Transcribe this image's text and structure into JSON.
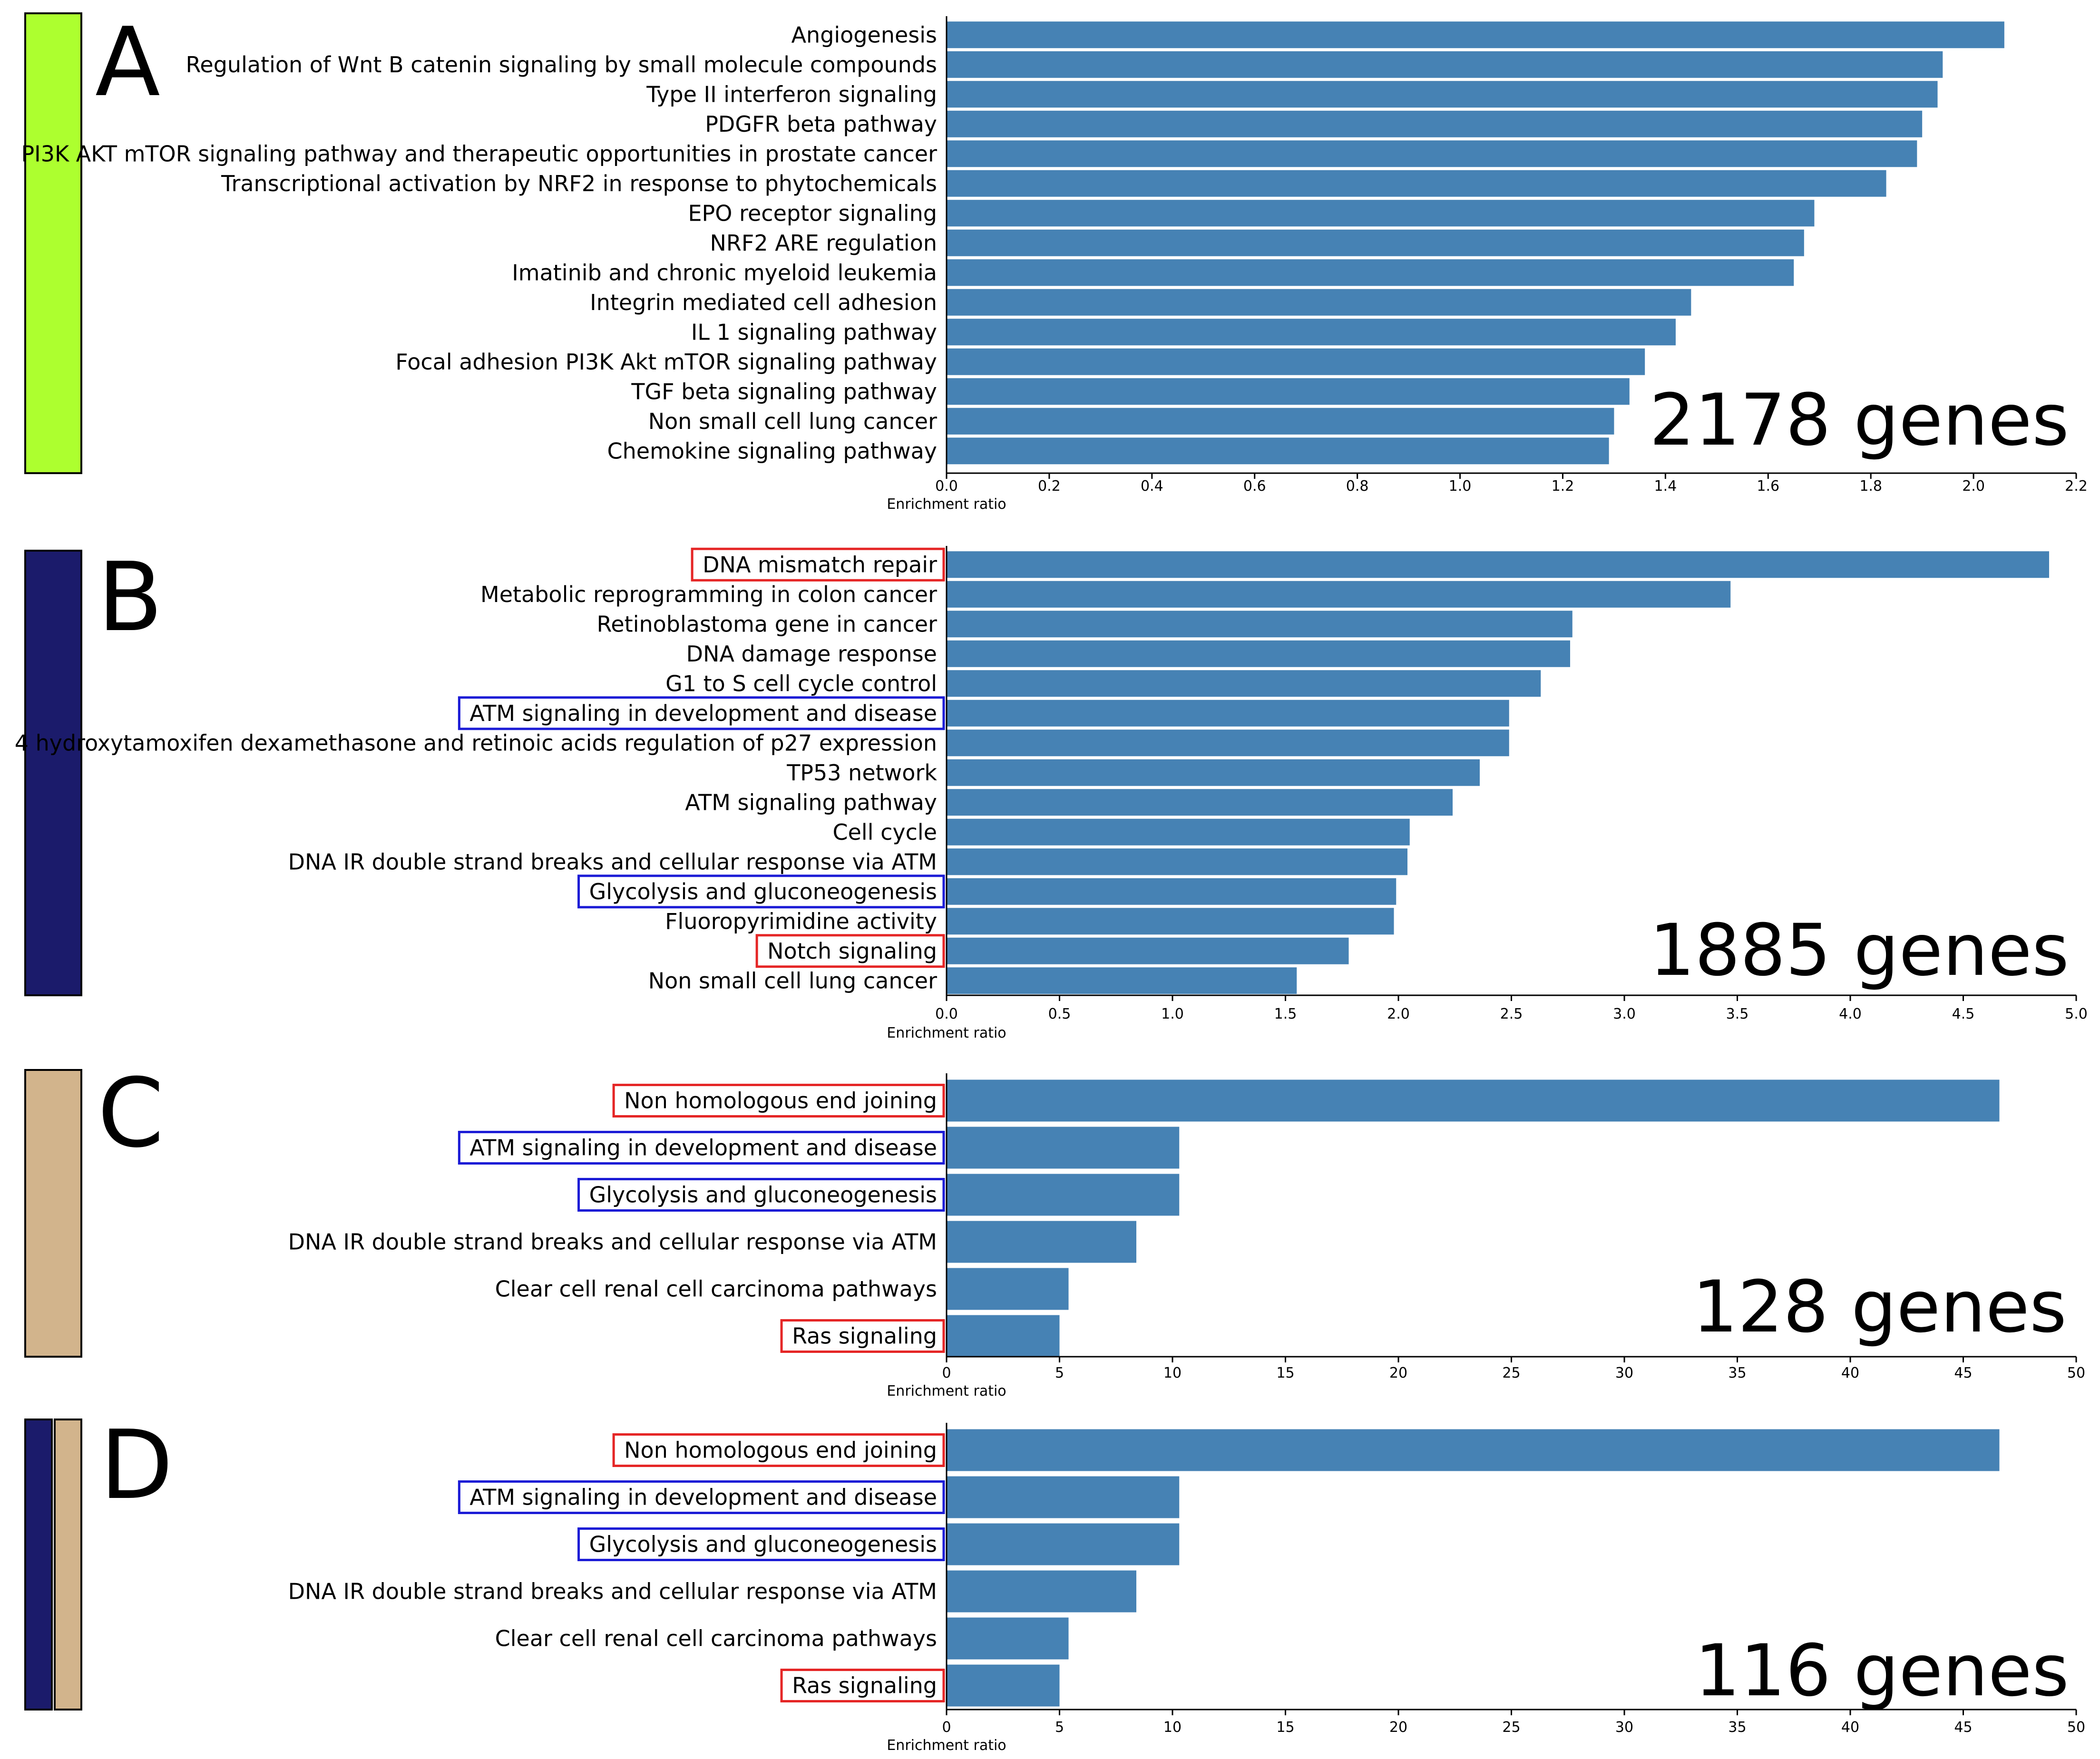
{
  "colors": {
    "bar": "#4682b4",
    "highlight_red": "#e52626",
    "highlight_blue": "#1c1cd6",
    "swatch_green": "#adff2f",
    "swatch_navy": "#1b1b6b",
    "swatch_tan": "#d2b48c"
  },
  "chart_data": [
    {
      "type": "bar",
      "orientation": "horizontal",
      "panel": "A",
      "swatches": [
        "green"
      ],
      "annotation": "2178 genes",
      "xlabel": "Enrichment ratio",
      "xlim": [
        0,
        2.2
      ],
      "xticks": [
        "0.0",
        "0.2",
        "0.4",
        "0.6",
        "0.8",
        "1.0",
        "1.2",
        "1.4",
        "1.6",
        "1.8",
        "2.0",
        "2.2"
      ],
      "categories": [
        "Angiogenesis",
        "Regulation of Wnt B catenin signaling by small molecule compounds",
        "Type II interferon signaling",
        "PDGFR beta pathway",
        "PI3K AKT mTOR signaling pathway and therapeutic opportunities in prostate cancer",
        "Transcriptional activation by NRF2 in response to phytochemicals",
        "EPO receptor signaling",
        "NRF2 ARE regulation",
        "Imatinib and chronic myeloid leukemia",
        "Integrin mediated cell adhesion",
        "IL 1 signaling pathway",
        "Focal adhesion PI3K Akt mTOR signaling pathway",
        "TGF beta signaling pathway",
        "Non small cell lung cancer",
        "Chemokine signaling pathway"
      ],
      "values": [
        2.06,
        1.94,
        1.93,
        1.9,
        1.89,
        1.83,
        1.69,
        1.67,
        1.65,
        1.45,
        1.42,
        1.36,
        1.33,
        1.3,
        1.29
      ],
      "highlights": []
    },
    {
      "type": "bar",
      "orientation": "horizontal",
      "panel": "B",
      "swatches": [
        "navy"
      ],
      "annotation": "1885 genes",
      "xlabel": "Enrichment ratio",
      "xlim": [
        0,
        5.0
      ],
      "xticks": [
        "0.0",
        "0.5",
        "1.0",
        "1.5",
        "2.0",
        "2.5",
        "3.0",
        "3.5",
        "4.0",
        "4.5",
        "5.0"
      ],
      "categories": [
        "DNA mismatch repair",
        "Metabolic reprogramming in colon cancer",
        "Retinoblastoma gene in cancer",
        "DNA damage response",
        "G1 to S cell cycle control",
        "ATM signaling in development and disease",
        "4 hydroxytamoxifen dexamethasone and retinoic acids regulation of p27 expression",
        "TP53 network",
        "ATM signaling pathway",
        "Cell cycle",
        "DNA IR double strand breaks and cellular response via ATM",
        "Glycolysis and gluconeogenesis",
        "Fluoropyrimidine activity",
        "Notch signaling",
        "Non small cell lung cancer"
      ],
      "values": [
        4.88,
        3.47,
        2.77,
        2.76,
        2.63,
        2.49,
        2.49,
        2.36,
        2.24,
        2.05,
        2.04,
        1.99,
        1.98,
        1.78,
        1.55
      ],
      "highlights": [
        "red",
        null,
        null,
        null,
        null,
        "blue",
        null,
        null,
        null,
        null,
        null,
        "blue",
        null,
        "red",
        null
      ]
    },
    {
      "type": "bar",
      "orientation": "horizontal",
      "panel": "C",
      "swatches": [
        "tan"
      ],
      "annotation": "128 genes",
      "xlabel": "Enrichment ratio",
      "xlim": [
        0,
        50
      ],
      "xticks": [
        "0",
        "5",
        "10",
        "15",
        "20",
        "25",
        "30",
        "35",
        "40",
        "45",
        "50"
      ],
      "categories": [
        "Non homologous end joining",
        "ATM signaling in development and disease",
        "Glycolysis and gluconeogenesis",
        "DNA IR double strand breaks and cellular response via ATM",
        "Clear cell renal cell carcinoma pathways",
        "Ras signaling"
      ],
      "values": [
        46.6,
        10.3,
        10.3,
        8.4,
        5.4,
        5.0
      ],
      "highlights": [
        "red",
        "blue",
        "blue",
        null,
        null,
        "red"
      ]
    },
    {
      "type": "bar",
      "orientation": "horizontal",
      "panel": "D",
      "swatches": [
        "navy",
        "tan"
      ],
      "annotation": "116 genes",
      "xlabel": "Enrichment ratio",
      "xlim": [
        0,
        50
      ],
      "xticks": [
        "0",
        "5",
        "10",
        "15",
        "20",
        "25",
        "30",
        "35",
        "40",
        "45",
        "50"
      ],
      "categories": [
        "Non homologous end joining",
        "ATM signaling in development and disease",
        "Glycolysis and gluconeogenesis",
        "DNA IR double strand breaks and cellular response via ATM",
        "Clear cell renal cell carcinoma pathways",
        "Ras signaling"
      ],
      "values": [
        46.6,
        10.3,
        10.3,
        8.4,
        5.4,
        5.0
      ],
      "highlights": [
        "red",
        "blue",
        "blue",
        null,
        null,
        "red"
      ]
    }
  ]
}
